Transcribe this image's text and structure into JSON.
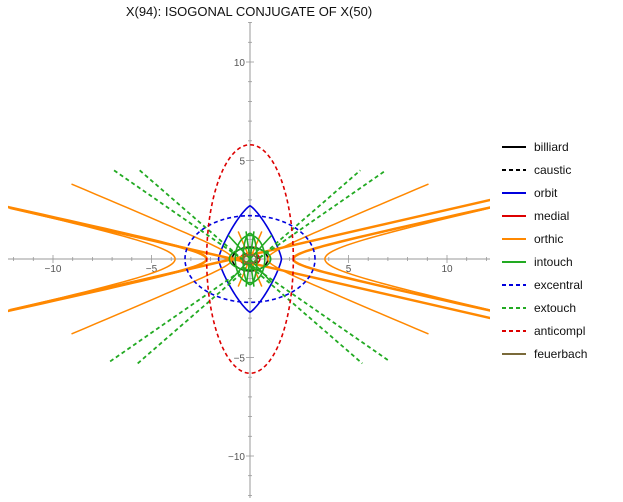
{
  "chart_data": {
    "type": "line",
    "title": "X(94): ISOGONAL CONJUGATE OF X(50)",
    "xlabel": "",
    "ylabel": "",
    "xlim": [
      -12.2,
      12.2
    ],
    "ylim": [
      -12.2,
      12.2
    ],
    "x_ticks": [
      {
        "value": -10,
        "label": "−10"
      },
      {
        "value": -5,
        "label": "−5"
      },
      {
        "value": 5,
        "label": "5"
      },
      {
        "value": 10,
        "label": "10"
      }
    ],
    "y_ticks": [
      {
        "value": 10,
        "label": "10"
      },
      {
        "value": 5,
        "label": "5"
      },
      {
        "value": -5,
        "label": "−5"
      },
      {
        "value": -10,
        "label": "−10"
      }
    ],
    "grid": false,
    "legend_position": "right",
    "series": [
      {
        "name": "billiard",
        "color": "#000000",
        "dashed": false,
        "curves": [
          {
            "kind": "ellipse",
            "a": 0.9,
            "b": 0.6
          }
        ]
      },
      {
        "name": "caustic",
        "color": "#000000",
        "dashed": true,
        "curves": [
          {
            "kind": "ellipse",
            "a": 0.4,
            "b": 0.25
          }
        ]
      },
      {
        "name": "orbit",
        "color": "#0000dd",
        "dashed": false,
        "curves": [
          {
            "kind": "astroid",
            "a": 1.6,
            "b": 2.7,
            "p": 1.6
          }
        ]
      },
      {
        "name": "medial",
        "color": "#dd0000",
        "dashed": false,
        "curves": [
          {
            "kind": "ellipse",
            "a": 0.5,
            "b": 0.3
          }
        ]
      },
      {
        "name": "orthic",
        "color": "#ff8800",
        "dashed": false,
        "curves": [
          {
            "kind": "hyperbola",
            "a": 3.8,
            "b": 0.85,
            "width": 1.5
          },
          {
            "kind": "hyperbola",
            "a": 2.2,
            "b": 0.48,
            "width": 2.5
          },
          {
            "kind": "hyperbola",
            "a": 0.9,
            "b": 0.38,
            "width": 1.5
          },
          {
            "kind": "lines",
            "width": 2.5,
            "segments": [
              [
                [
                  -12.2,
                  2.6
                ],
                [
                  12.2,
                  -3.0
                ]
              ],
              [
                [
                  -12.2,
                  -2.6
                ],
                [
                  12.2,
                  3.0
                ]
              ]
            ]
          },
          {
            "kind": "lines",
            "width": 1.5,
            "segments": [
              [
                [
                  -0.6,
                  1.4
                ],
                [
                  0.6,
                  -1.4
                ]
              ],
              [
                [
                  -0.6,
                  -1.4
                ],
                [
                  0.6,
                  1.4
                ]
              ]
            ]
          }
        ]
      },
      {
        "name": "intouch",
        "color": "#22aa22",
        "dashed": false,
        "curves": [
          {
            "kind": "ellipse",
            "a": 0.75,
            "b": 1.2
          },
          {
            "kind": "ellipse",
            "a": 0.35,
            "b": 1.3
          },
          {
            "kind": "ellipse",
            "a": 1.05,
            "b": 0.55
          },
          {
            "kind": "lines",
            "width": 1.6,
            "segments": [
              [
                [
                  -1.1,
                  1.2
                ],
                [
                  1.1,
                  -1.2
                ]
              ],
              [
                [
                  -1.1,
                  -1.2
                ],
                [
                  1.1,
                  1.2
                ]
              ],
              [
                [
                  -0.2,
                  1.4
                ],
                [
                  0.2,
                  -1.4
                ]
              ],
              [
                [
                  -0.2,
                  -1.4
                ],
                [
                  0.2,
                  1.4
                ]
              ]
            ]
          }
        ]
      },
      {
        "name": "excentral",
        "color": "#0000dd",
        "dashed": true,
        "curves": [
          {
            "kind": "ellipse",
            "a": 3.3,
            "b": 2.2
          }
        ]
      },
      {
        "name": "extouch",
        "color": "#22aa22",
        "dashed": true,
        "curves": [
          {
            "kind": "lines",
            "width": 1.8,
            "segments": [
              [
                [
                  -6.9,
                  4.5
                ],
                [
                  7.1,
                  -5.2
                ]
              ],
              [
                [
                  -5.6,
                  4.5
                ],
                [
                  5.7,
                  -5.3
                ]
              ],
              [
                [
                  -7.1,
                  -5.2
                ],
                [
                  6.9,
                  4.5
                ]
              ],
              [
                [
                  -5.7,
                  -5.3
                ],
                [
                  5.6,
                  4.5
                ]
              ]
            ]
          }
        ]
      },
      {
        "name": "anticompl",
        "color": "#dd0000",
        "dashed": true,
        "curves": [
          {
            "kind": "ellipse",
            "a": 2.2,
            "b": 5.8
          }
        ]
      },
      {
        "name": "feuerbach",
        "color": "#7a6a3a",
        "dashed": false,
        "curves": [
          {
            "kind": "ellipse",
            "a": 0.32,
            "b": 0.22
          }
        ]
      }
    ]
  }
}
